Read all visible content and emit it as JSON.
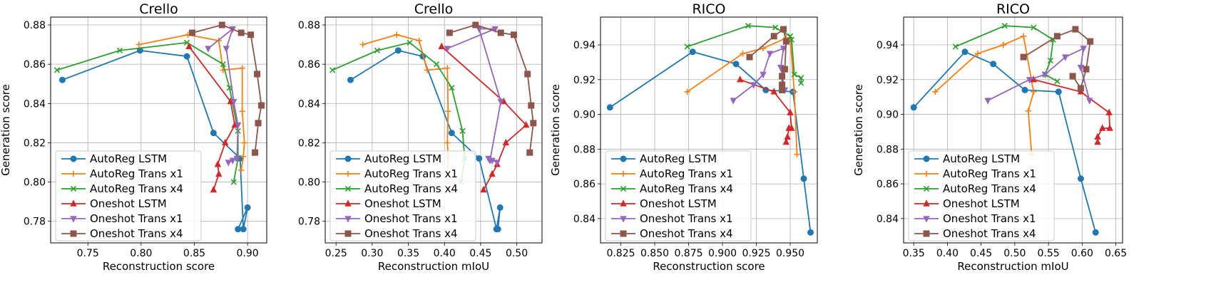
{
  "chart_data": [
    {
      "type": "line",
      "title": "Crello",
      "xlabel": "Reconstruction score",
      "ylabel": "Generation score",
      "xlim": [
        0.715,
        0.918
      ],
      "ylim": [
        0.769,
        0.884
      ],
      "xticks": [
        0.75,
        0.8,
        0.85,
        0.9
      ],
      "xtick_labels": [
        "0.75",
        "0.80",
        "0.85",
        "0.90"
      ],
      "yticks": [
        0.78,
        0.8,
        0.82,
        0.84,
        0.86,
        0.88
      ],
      "ytick_labels": [
        "0.78",
        "0.80",
        "0.82",
        "0.84",
        "0.86",
        "0.88"
      ],
      "grid": true,
      "legend_position": "lower-left",
      "series": [
        {
          "name": "AutoReg LSTM",
          "color": "#1f77b4",
          "marker": "circle",
          "x": [
            0.726,
            0.799,
            0.843,
            0.868,
            0.893,
            0.896,
            0.9,
            0.891
          ],
          "y": [
            0.852,
            0.867,
            0.864,
            0.825,
            0.812,
            0.776,
            0.787,
            0.776
          ]
        },
        {
          "name": "AutoReg Trans x1",
          "color": "#ff7f0e",
          "marker": "plus",
          "x": [
            0.798,
            0.844,
            0.873,
            0.877,
            0.895,
            0.895,
            0.897,
            0.896,
            0.894
          ],
          "y": [
            0.87,
            0.875,
            0.872,
            0.857,
            0.858,
            0.836,
            0.82,
            0.813,
            0.806
          ]
        },
        {
          "name": "AutoReg Trans x4",
          "color": "#2ca02c",
          "marker": "x",
          "x": [
            0.721,
            0.78,
            0.843,
            0.877,
            0.883,
            0.891,
            0.891,
            0.887
          ],
          "y": [
            0.857,
            0.867,
            0.871,
            0.86,
            0.848,
            0.826,
            0.812,
            0.8
          ]
        },
        {
          "name": "Oneshot LSTM",
          "color": "#d62728",
          "marker": "triangle-up",
          "x": [
            0.845,
            0.884,
            0.888,
            0.879,
            0.872,
            0.873,
            0.868
          ],
          "y": [
            0.869,
            0.841,
            0.829,
            0.82,
            0.809,
            0.804,
            0.796
          ]
        },
        {
          "name": "Oneshot Trans x1",
          "color": "#9467bd",
          "marker": "triangle-down",
          "x": [
            0.863,
            0.886,
            0.88,
            0.887,
            0.891,
            0.89,
            0.886,
            0.882
          ],
          "y": [
            0.868,
            0.878,
            0.868,
            0.841,
            0.829,
            0.812,
            0.811,
            0.81
          ]
        },
        {
          "name": "Oneshot Trans x4",
          "color": "#8c564b",
          "marker": "square",
          "x": [
            0.848,
            0.876,
            0.894,
            0.903,
            0.909,
            0.913,
            0.91,
            0.907
          ],
          "y": [
            0.876,
            0.88,
            0.876,
            0.875,
            0.855,
            0.839,
            0.83,
            0.815
          ]
        }
      ]
    },
    {
      "type": "line",
      "title": "Crello",
      "xlabel": "Reconstruction mIoU",
      "ylabel": "",
      "xlim": [
        0.235,
        0.535
      ],
      "ylim": [
        0.769,
        0.884
      ],
      "xticks": [
        0.25,
        0.3,
        0.35,
        0.4,
        0.45,
        0.5
      ],
      "xtick_labels": [
        "0.25",
        "0.30",
        "0.35",
        "0.40",
        "0.45",
        "0.50"
      ],
      "yticks": [
        0.78,
        0.8,
        0.82,
        0.84,
        0.86,
        0.88
      ],
      "ytick_labels": [
        "0.78",
        "0.80",
        "0.82",
        "0.84",
        "0.86",
        "0.88"
      ],
      "grid": true,
      "legend_position": "lower-left",
      "series": [
        {
          "name": "AutoReg LSTM",
          "color": "#1f77b4",
          "marker": "circle",
          "x": [
            0.27,
            0.336,
            0.37,
            0.41,
            0.448,
            0.472,
            0.477,
            0.474
          ],
          "y": [
            0.852,
            0.867,
            0.864,
            0.825,
            0.812,
            0.776,
            0.787,
            0.776
          ]
        },
        {
          "name": "AutoReg Trans x1",
          "color": "#ff7f0e",
          "marker": "plus",
          "x": [
            0.287,
            0.334,
            0.365,
            0.376,
            0.404,
            0.405,
            0.404,
            0.405,
            0.404
          ],
          "y": [
            0.87,
            0.875,
            0.872,
            0.857,
            0.858,
            0.836,
            0.82,
            0.813,
            0.806
          ]
        },
        {
          "name": "AutoReg Trans x4",
          "color": "#2ca02c",
          "marker": "x",
          "x": [
            0.245,
            0.307,
            0.352,
            0.389,
            0.41,
            0.425,
            0.428,
            0.423
          ],
          "y": [
            0.857,
            0.867,
            0.871,
            0.86,
            0.848,
            0.826,
            0.812,
            0.8
          ]
        },
        {
          "name": "Oneshot LSTM",
          "color": "#d62728",
          "marker": "triangle-up",
          "x": [
            0.396,
            0.482,
            0.513,
            0.485,
            0.473,
            0.466,
            0.454
          ],
          "y": [
            0.869,
            0.841,
            0.829,
            0.82,
            0.809,
            0.804,
            0.796
          ]
        },
        {
          "name": "Oneshot Trans x1",
          "color": "#9467bd",
          "marker": "triangle-down",
          "x": [
            0.404,
            0.47,
            0.448,
            0.478,
            0.463,
            0.461,
            0.466,
            0.473
          ],
          "y": [
            0.868,
            0.878,
            0.878,
            0.841,
            0.811,
            0.812,
            0.811,
            0.81
          ]
        },
        {
          "name": "Oneshot Trans x4",
          "color": "#8c564b",
          "marker": "square",
          "x": [
            0.407,
            0.443,
            0.478,
            0.496,
            0.515,
            0.52,
            0.523,
            0.518
          ],
          "y": [
            0.876,
            0.88,
            0.876,
            0.875,
            0.855,
            0.839,
            0.83,
            0.815
          ]
        }
      ]
    },
    {
      "type": "line",
      "title": "RICO",
      "xlabel": "Reconstruction score",
      "ylabel": "Generation score",
      "xlim": [
        0.81,
        0.97
      ],
      "ylim": [
        0.826,
        0.956
      ],
      "xticks": [
        0.825,
        0.85,
        0.875,
        0.9,
        0.925,
        0.95
      ],
      "xtick_labels": [
        "0.825",
        "0.850",
        "0.875",
        "0.900",
        "0.925",
        "0.950"
      ],
      "yticks": [
        0.84,
        0.86,
        0.88,
        0.9,
        0.92,
        0.94
      ],
      "ytick_labels": [
        "0.84",
        "0.86",
        "0.88",
        "0.90",
        "0.92",
        "0.94"
      ],
      "grid": true,
      "legend_position": "lower-left",
      "series": [
        {
          "name": "AutoReg LSTM",
          "color": "#1f77b4",
          "marker": "circle",
          "x": [
            0.817,
            0.878,
            0.91,
            0.932,
            0.952,
            0.96,
            0.965
          ],
          "y": [
            0.904,
            0.936,
            0.929,
            0.914,
            0.913,
            0.863,
            0.832
          ]
        },
        {
          "name": "AutoReg Trans x1",
          "color": "#ff7f0e",
          "marker": "plus",
          "x": [
            0.874,
            0.915,
            0.93,
            0.947,
            0.95,
            0.953,
            0.955
          ],
          "y": [
            0.913,
            0.935,
            0.938,
            0.944,
            0.944,
            0.913,
            0.877
          ]
        },
        {
          "name": "AutoReg Trans x4",
          "color": "#2ca02c",
          "marker": "x",
          "x": [
            0.874,
            0.919,
            0.939,
            0.95,
            0.951,
            0.953,
            0.958,
            0.958
          ],
          "y": [
            0.939,
            0.951,
            0.95,
            0.945,
            0.943,
            0.923,
            0.921,
            0.918
          ]
        },
        {
          "name": "Oneshot LSTM",
          "color": "#d62728",
          "marker": "triangle-up",
          "x": [
            0.913,
            0.938,
            0.95,
            0.951,
            0.949,
            0.948,
            0.947
          ],
          "y": [
            0.92,
            0.913,
            0.901,
            0.892,
            0.892,
            0.887,
            0.884
          ]
        },
        {
          "name": "Oneshot Trans x1",
          "color": "#9467bd",
          "marker": "triangle-down",
          "x": [
            0.908,
            0.923,
            0.93,
            0.935,
            0.945,
            0.943,
            0.946
          ],
          "y": [
            0.908,
            0.917,
            0.923,
            0.935,
            0.938,
            0.927,
            0.914
          ]
        },
        {
          "name": "Oneshot Trans x4",
          "color": "#8c564b",
          "marker": "square",
          "x": [
            0.92,
            0.938,
            0.945,
            0.947,
            0.946,
            0.944,
            0.944,
            0.944
          ],
          "y": [
            0.933,
            0.945,
            0.949,
            0.942,
            0.926,
            0.922,
            0.917,
            0.914
          ]
        }
      ]
    },
    {
      "type": "line",
      "title": "RICO",
      "xlabel": "Reconstruction mIoU",
      "ylabel": "Generation score",
      "xlim": [
        0.335,
        0.66
      ],
      "ylim": [
        0.826,
        0.956
      ],
      "xticks": [
        0.35,
        0.4,
        0.45,
        0.5,
        0.55,
        0.6,
        0.65
      ],
      "xtick_labels": [
        "0.35",
        "0.40",
        "0.45",
        "0.50",
        "0.55",
        "0.60",
        "0.65"
      ],
      "yticks": [
        0.84,
        0.86,
        0.88,
        0.9,
        0.92,
        0.94
      ],
      "ytick_labels": [
        "0.84",
        "0.86",
        "0.88",
        "0.90",
        "0.92",
        "0.94"
      ],
      "grid": true,
      "legend_position": "lower-left",
      "series": [
        {
          "name": "AutoReg LSTM",
          "color": "#1f77b4",
          "marker": "circle",
          "x": [
            0.35,
            0.426,
            0.468,
            0.515,
            0.565,
            0.598,
            0.62
          ],
          "y": [
            0.904,
            0.936,
            0.929,
            0.914,
            0.913,
            0.863,
            0.832
          ]
        },
        {
          "name": "AutoReg Trans x1",
          "color": "#ff7f0e",
          "marker": "plus",
          "x": [
            0.382,
            0.445,
            0.483,
            0.513,
            0.528,
            0.52,
            0.525
          ],
          "y": [
            0.913,
            0.935,
            0.94,
            0.945,
            0.913,
            0.902,
            0.877
          ]
        },
        {
          "name": "AutoReg Trans x4",
          "color": "#2ca02c",
          "marker": "x",
          "x": [
            0.412,
            0.485,
            0.528,
            0.557,
            0.553,
            0.545,
            0.563
          ],
          "y": [
            0.939,
            0.951,
            0.95,
            0.943,
            0.931,
            0.923,
            0.919
          ]
        },
        {
          "name": "Oneshot LSTM",
          "color": "#d62728",
          "marker": "triangle-up",
          "x": [
            0.528,
            0.598,
            0.64,
            0.641,
            0.63,
            0.623,
            0.623
          ],
          "y": [
            0.92,
            0.913,
            0.901,
            0.892,
            0.892,
            0.887,
            0.884
          ]
        },
        {
          "name": "Oneshot Trans x1",
          "color": "#9467bd",
          "marker": "triangle-down",
          "x": [
            0.46,
            0.522,
            0.545,
            0.575,
            0.602,
            0.598,
            0.611
          ],
          "y": [
            0.908,
            0.92,
            0.923,
            0.933,
            0.938,
            0.927,
            0.908
          ]
        },
        {
          "name": "Oneshot Trans x4",
          "color": "#8c564b",
          "marker": "square",
          "x": [
            0.513,
            0.563,
            0.59,
            0.612,
            0.606,
            0.598,
            0.586
          ],
          "y": [
            0.933,
            0.945,
            0.949,
            0.942,
            0.926,
            0.915,
            0.922
          ]
        }
      ]
    }
  ]
}
